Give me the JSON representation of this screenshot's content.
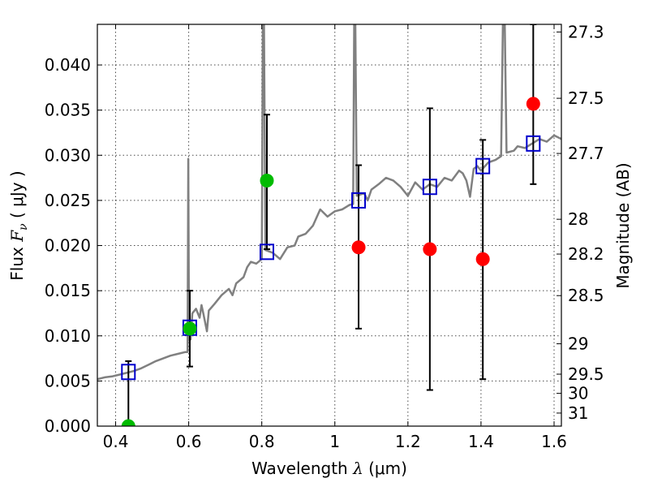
{
  "chart_data": {
    "type": "scatter",
    "title": "",
    "xlabel": {
      "prefix": "Wavelength  ",
      "symbol": "λ",
      "unit": " (μm)"
    },
    "ylabel": {
      "prefix": "Flux  ",
      "symbol": "F",
      "subscript": "ν",
      "unit": "  ( μJy )"
    },
    "y2label": "Magnitude (AB)",
    "xlim": [
      0.35,
      1.62
    ],
    "ylim": [
      0.0,
      0.0445
    ],
    "grid": true,
    "x_ticks": [
      {
        "value": 0.4,
        "label": "0.4"
      },
      {
        "value": 0.6,
        "label": "0.6"
      },
      {
        "value": 0.8,
        "label": "0.8"
      },
      {
        "value": 1.0,
        "label": "1"
      },
      {
        "value": 1.2,
        "label": "1.2"
      },
      {
        "value": 1.4,
        "label": "1.4"
      },
      {
        "value": 1.6,
        "label": "1.6"
      }
    ],
    "y_ticks": [
      {
        "value": 0.0,
        "label": "0.000"
      },
      {
        "value": 0.005,
        "label": "0.005"
      },
      {
        "value": 0.01,
        "label": "0.010"
      },
      {
        "value": 0.015,
        "label": "0.015"
      },
      {
        "value": 0.02,
        "label": "0.020"
      },
      {
        "value": 0.025,
        "label": "0.025"
      },
      {
        "value": 0.03,
        "label": "0.030"
      },
      {
        "value": 0.035,
        "label": "0.035"
      },
      {
        "value": 0.04,
        "label": "0.040"
      }
    ],
    "y2_ticks": [
      {
        "mag": 27.3,
        "label": "27.3"
      },
      {
        "mag": 27.5,
        "label": "27.5"
      },
      {
        "mag": 27.7,
        "label": "27.7"
      },
      {
        "mag": 28.0,
        "label": "28"
      },
      {
        "mag": 28.2,
        "label": "28.2"
      },
      {
        "mag": 28.5,
        "label": "28.5"
      },
      {
        "mag": 29.0,
        "label": "29"
      },
      {
        "mag": 29.5,
        "label": "29.5"
      },
      {
        "mag": 30.0,
        "label": "30"
      },
      {
        "mag": 31.0,
        "label": "31"
      }
    ],
    "model_spectrum": {
      "color": "#808080",
      "points": [
        [
          0.35,
          0.0052
        ],
        [
          0.37,
          0.0054
        ],
        [
          0.39,
          0.0055
        ],
        [
          0.41,
          0.0057
        ],
        [
          0.43,
          0.0059
        ],
        [
          0.45,
          0.0061
        ],
        [
          0.47,
          0.0064
        ],
        [
          0.49,
          0.0068
        ],
        [
          0.51,
          0.0072
        ],
        [
          0.53,
          0.0075
        ],
        [
          0.55,
          0.0078
        ],
        [
          0.57,
          0.008
        ],
        [
          0.59,
          0.0082
        ],
        [
          0.597,
          0.0082
        ],
        [
          0.599,
          0.0296
        ],
        [
          0.601,
          0.0095
        ],
        [
          0.605,
          0.0096
        ],
        [
          0.61,
          0.0125
        ],
        [
          0.62,
          0.013
        ],
        [
          0.63,
          0.012
        ],
        [
          0.635,
          0.0134
        ],
        [
          0.64,
          0.0125
        ],
        [
          0.65,
          0.0105
        ],
        [
          0.655,
          0.0128
        ],
        [
          0.67,
          0.0135
        ],
        [
          0.69,
          0.0145
        ],
        [
          0.71,
          0.0152
        ],
        [
          0.72,
          0.0145
        ],
        [
          0.73,
          0.0158
        ],
        [
          0.75,
          0.0165
        ],
        [
          0.76,
          0.0176
        ],
        [
          0.77,
          0.0182
        ],
        [
          0.785,
          0.018
        ],
        [
          0.8,
          0.0185
        ],
        [
          0.803,
          0.0445
        ],
        [
          0.806,
          0.0445
        ],
        [
          0.81,
          0.0195
        ],
        [
          0.83,
          0.0192
        ],
        [
          0.85,
          0.0185
        ],
        [
          0.87,
          0.0198
        ],
        [
          0.89,
          0.02
        ],
        [
          0.9,
          0.021
        ],
        [
          0.92,
          0.0213
        ],
        [
          0.94,
          0.0222
        ],
        [
          0.96,
          0.024
        ],
        [
          0.98,
          0.0232
        ],
        [
          1.0,
          0.0238
        ],
        [
          1.02,
          0.024
        ],
        [
          1.04,
          0.0245
        ],
        [
          1.05,
          0.0246
        ],
        [
          1.053,
          0.0445
        ],
        [
          1.056,
          0.0445
        ],
        [
          1.06,
          0.0255
        ],
        [
          1.08,
          0.0258
        ],
        [
          1.09,
          0.025
        ],
        [
          1.1,
          0.0262
        ],
        [
          1.12,
          0.0268
        ],
        [
          1.14,
          0.0275
        ],
        [
          1.16,
          0.0272
        ],
        [
          1.18,
          0.0265
        ],
        [
          1.2,
          0.0255
        ],
        [
          1.22,
          0.027
        ],
        [
          1.24,
          0.0262
        ],
        [
          1.26,
          0.0268
        ],
        [
          1.28,
          0.0265
        ],
        [
          1.3,
          0.0275
        ],
        [
          1.32,
          0.0272
        ],
        [
          1.34,
          0.0283
        ],
        [
          1.35,
          0.028
        ],
        [
          1.36,
          0.0272
        ],
        [
          1.37,
          0.0254
        ],
        [
          1.38,
          0.0285
        ],
        [
          1.39,
          0.0288
        ],
        [
          1.4,
          0.0283
        ],
        [
          1.42,
          0.0292
        ],
        [
          1.44,
          0.0295
        ],
        [
          1.455,
          0.0299
        ],
        [
          1.46,
          0.0445
        ],
        [
          1.465,
          0.0445
        ],
        [
          1.47,
          0.0303
        ],
        [
          1.49,
          0.0305
        ],
        [
          1.5,
          0.031
        ],
        [
          1.52,
          0.0308
        ],
        [
          1.54,
          0.0313
        ],
        [
          1.56,
          0.0318
        ],
        [
          1.58,
          0.0315
        ],
        [
          1.6,
          0.0322
        ],
        [
          1.62,
          0.0318
        ]
      ]
    },
    "model_photometry": {
      "marker": "open-square",
      "color": "#0000cc",
      "points": [
        [
          0.435,
          0.006
        ],
        [
          0.603,
          0.0109
        ],
        [
          0.814,
          0.0193
        ],
        [
          1.065,
          0.025
        ],
        [
          1.26,
          0.0265
        ],
        [
          1.405,
          0.0288
        ],
        [
          1.543,
          0.0313
        ]
      ]
    },
    "observed_photometry": {
      "marker": "filled-circle",
      "points": [
        {
          "x": 0.435,
          "y": 0.0,
          "yerr_low": 0.0,
          "yerr_high": 0.0072,
          "color": "#00bb00"
        },
        {
          "x": 0.603,
          "y": 0.0108,
          "yerr_low": 0.0066,
          "yerr_high": 0.015,
          "color": "#00bb00"
        },
        {
          "x": 0.814,
          "y": 0.0272,
          "yerr_low": 0.0196,
          "yerr_high": 0.0345,
          "color": "#00bb00"
        },
        {
          "x": 1.065,
          "y": 0.0198,
          "yerr_low": 0.0108,
          "yerr_high": 0.0289,
          "color": "#ff0000"
        },
        {
          "x": 1.26,
          "y": 0.0196,
          "yerr_low": 0.004,
          "yerr_high": 0.0352,
          "color": "#ff0000"
        },
        {
          "x": 1.405,
          "y": 0.0185,
          "yerr_low": 0.0052,
          "yerr_high": 0.0317,
          "color": "#ff0000"
        },
        {
          "x": 1.543,
          "y": 0.0357,
          "yerr_low": 0.0268,
          "yerr_high": 0.0445,
          "color": "#ff0000"
        }
      ]
    }
  }
}
